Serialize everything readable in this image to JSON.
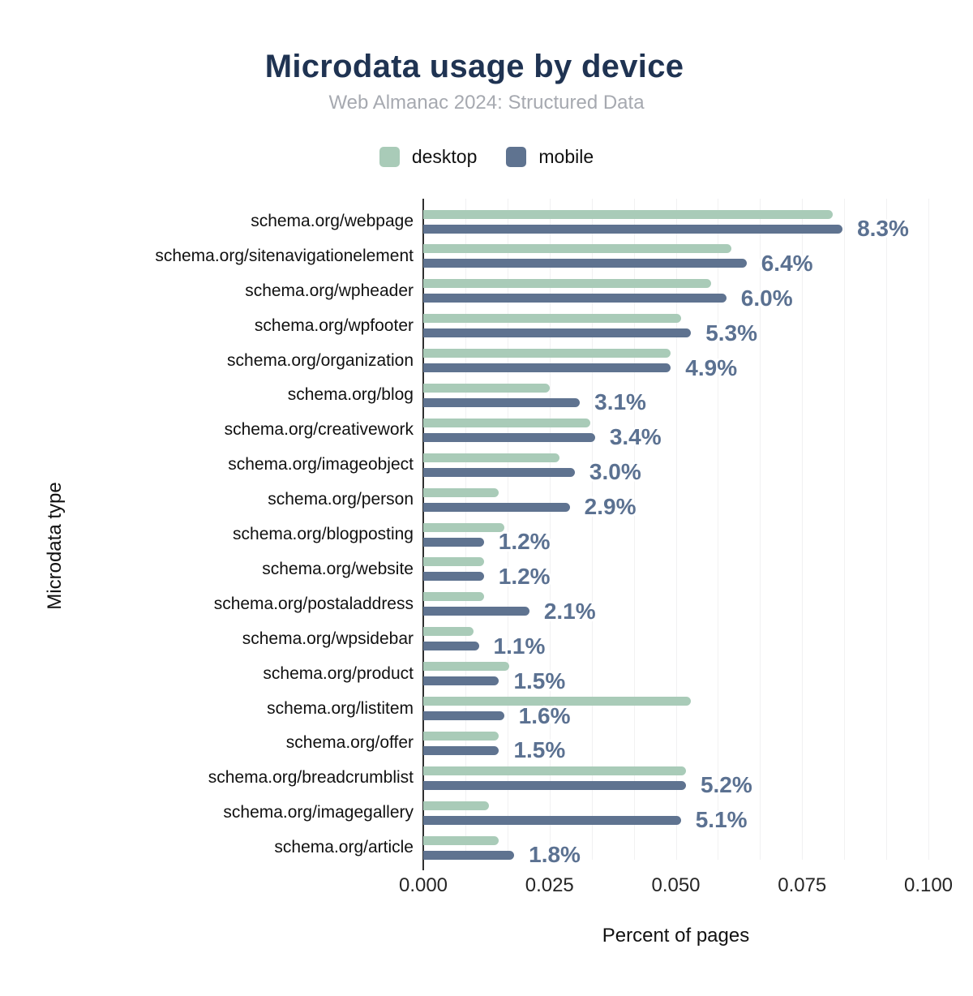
{
  "header": {
    "title": "Microdata usage by device",
    "subtitle": "Web Almanac 2024: Structured Data"
  },
  "colors": {
    "title": "#1f3352",
    "subtitle": "#a6a9b0",
    "desktop": "#a9cbb8",
    "mobile": "#5f7390",
    "value_label": "#5b7191",
    "axis_line": "#2f2f2f",
    "gridline": "#f1f1f2",
    "text": "#111111"
  },
  "chart_data": {
    "type": "bar",
    "orientation": "horizontal",
    "title": "Microdata usage by device",
    "subtitle": "Web Almanac 2024: Structured Data",
    "xlabel": "Percent of pages",
    "ylabel": "Microdata type",
    "xlim": [
      0,
      0.1
    ],
    "x_tick_values": [
      0,
      0.025,
      0.05,
      0.075,
      0.1
    ],
    "x_tick_labels": [
      "0.000",
      "0.025",
      "0.050",
      "0.075",
      "0.100"
    ],
    "axis_unit": "proportion of pages (percent / 100)",
    "grid": "vertical, 12 minor divisions, on",
    "legend_position": "top-center",
    "categories": [
      "schema.org/webpage",
      "schema.org/sitenavigationelement",
      "schema.org/wpheader",
      "schema.org/wpfooter",
      "schema.org/organization",
      "schema.org/blog",
      "schema.org/creativework",
      "schema.org/imageobject",
      "schema.org/person",
      "schema.org/blogposting",
      "schema.org/website",
      "schema.org/postaladdress",
      "schema.org/wpsidebar",
      "schema.org/product",
      "schema.org/listitem",
      "schema.org/offer",
      "schema.org/breadcrumblist",
      "schema.org/imagegallery",
      "schema.org/article"
    ],
    "series": [
      {
        "name": "desktop",
        "color": "#a9cbb8",
        "values_percent": [
          8.1,
          6.1,
          5.7,
          5.1,
          4.9,
          2.5,
          3.3,
          2.7,
          1.5,
          1.6,
          1.2,
          1.2,
          1.0,
          1.7,
          5.3,
          1.5,
          5.2,
          1.3,
          1.5
        ]
      },
      {
        "name": "mobile",
        "color": "#5f7390",
        "values_percent": [
          8.3,
          6.4,
          6.0,
          5.3,
          4.9,
          3.1,
          3.4,
          3.0,
          2.9,
          1.2,
          1.2,
          2.1,
          1.1,
          1.5,
          1.6,
          1.5,
          5.2,
          5.1,
          1.8
        ]
      }
    ],
    "bar_labels": [
      "8.3%",
      "6.4%",
      "6.0%",
      "5.3%",
      "4.9%",
      "3.1%",
      "3.4%",
      "3.0%",
      "2.9%",
      "1.2%",
      "1.2%",
      "2.1%",
      "1.1%",
      "1.5%",
      "1.6%",
      "1.5%",
      "5.2%",
      "5.1%",
      "1.8%"
    ],
    "bar_labels_follow": "mobile"
  }
}
